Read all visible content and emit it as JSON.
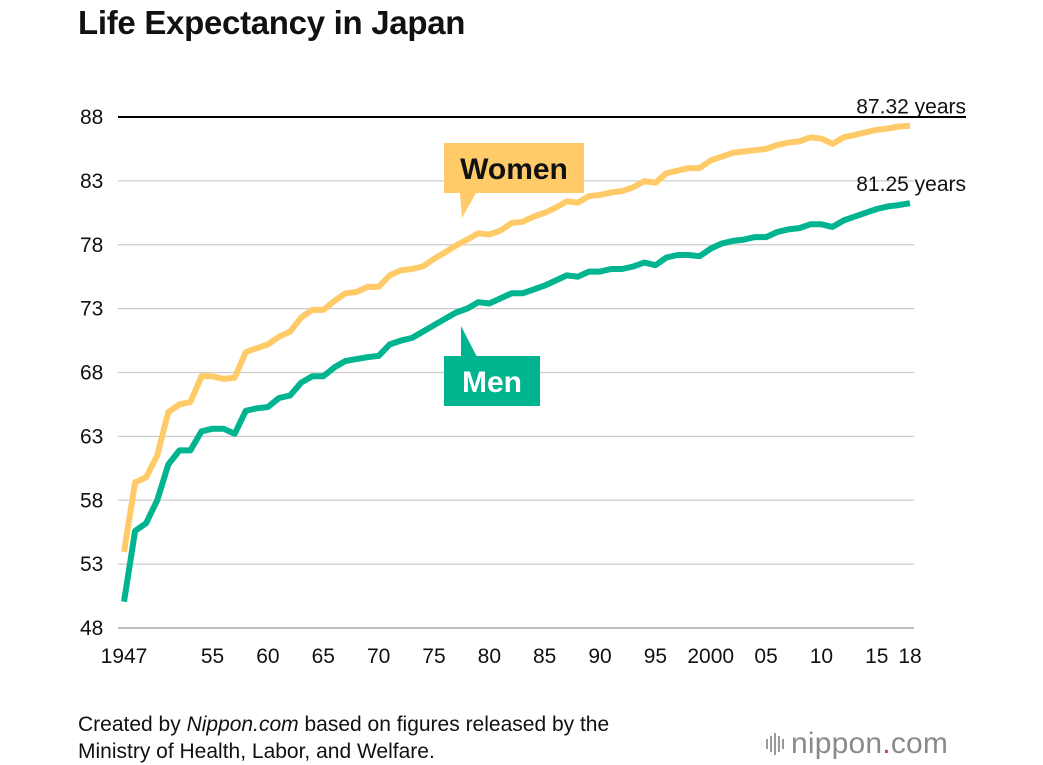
{
  "title": "Life Expectancy in Japan",
  "colors": {
    "women": "#FFCB69",
    "men": "#00B48F",
    "grid": "#cccccc",
    "topline": "#000000"
  },
  "footer": {
    "line1_pre": "Created by ",
    "line1_source": "Nippon.com",
    "line1_post": " based on figures released by the",
    "line2": "Ministry of Health, Labor, and Welfare."
  },
  "logo": {
    "name": "nippon",
    "dot": ".",
    "suffix": "com"
  },
  "chart_data": {
    "type": "line",
    "title": "Life Expectancy in Japan",
    "xlabel": "",
    "ylabel": "",
    "xlim": [
      1947,
      2018
    ],
    "ylim": [
      48,
      88
    ],
    "yticks": [
      48,
      53,
      58,
      63,
      68,
      73,
      78,
      83,
      88
    ],
    "ytick_labels": [
      "48",
      "53",
      "58",
      "63",
      "68",
      "73",
      "78",
      "83",
      "88"
    ],
    "xticks": [
      1947,
      1955,
      1960,
      1965,
      1970,
      1975,
      1980,
      1985,
      1990,
      1995,
      2000,
      2005,
      2010,
      2015,
      2018
    ],
    "xtick_labels": [
      "1947",
      "55",
      "60",
      "65",
      "70",
      "75",
      "80",
      "85",
      "90",
      "95",
      "2000",
      "05",
      "10",
      "15",
      "18"
    ],
    "grid": true,
    "series": [
      {
        "name": "Women",
        "end_label": "87.32 years",
        "x": [
          1947,
          1948,
          1949,
          1950,
          1951,
          1952,
          1953,
          1954,
          1955,
          1956,
          1957,
          1958,
          1959,
          1960,
          1961,
          1962,
          1963,
          1964,
          1965,
          1966,
          1967,
          1968,
          1969,
          1970,
          1971,
          1972,
          1973,
          1974,
          1975,
          1976,
          1977,
          1978,
          1979,
          1980,
          1981,
          1982,
          1983,
          1984,
          1985,
          1986,
          1987,
          1988,
          1989,
          1990,
          1991,
          1992,
          1993,
          1994,
          1995,
          1996,
          1997,
          1998,
          1999,
          2000,
          2001,
          2002,
          2003,
          2004,
          2005,
          2006,
          2007,
          2008,
          2009,
          2010,
          2011,
          2012,
          2013,
          2014,
          2015,
          2016,
          2017,
          2018
        ],
        "values": [
          53.96,
          59.4,
          59.8,
          61.5,
          64.9,
          65.5,
          65.7,
          67.7,
          67.7,
          67.5,
          67.6,
          69.6,
          69.9,
          70.2,
          70.8,
          71.2,
          72.3,
          72.9,
          72.9,
          73.6,
          74.2,
          74.3,
          74.7,
          74.7,
          75.6,
          76.0,
          76.1,
          76.3,
          76.9,
          77.4,
          77.95,
          78.4,
          78.9,
          78.8,
          79.1,
          79.7,
          79.8,
          80.2,
          80.5,
          80.9,
          81.4,
          81.3,
          81.8,
          81.9,
          82.1,
          82.2,
          82.5,
          82.98,
          82.85,
          83.6,
          83.8,
          84.0,
          84.0,
          84.6,
          84.9,
          85.2,
          85.3,
          85.4,
          85.5,
          85.8,
          86.0,
          86.1,
          86.4,
          86.3,
          85.9,
          86.4,
          86.6,
          86.8,
          87.0,
          87.1,
          87.26,
          87.32
        ]
      },
      {
        "name": "Men",
        "end_label": "81.25 years",
        "x": [
          1947,
          1948,
          1949,
          1950,
          1951,
          1952,
          1953,
          1954,
          1955,
          1956,
          1957,
          1958,
          1959,
          1960,
          1961,
          1962,
          1963,
          1964,
          1965,
          1966,
          1967,
          1968,
          1969,
          1970,
          1971,
          1972,
          1973,
          1974,
          1975,
          1976,
          1977,
          1978,
          1979,
          1980,
          1981,
          1982,
          1983,
          1984,
          1985,
          1986,
          1987,
          1988,
          1989,
          1990,
          1991,
          1992,
          1993,
          1994,
          1995,
          1996,
          1997,
          1998,
          1999,
          2000,
          2001,
          2002,
          2003,
          2004,
          2005,
          2006,
          2007,
          2008,
          2009,
          2010,
          2011,
          2012,
          2013,
          2014,
          2015,
          2016,
          2017,
          2018
        ],
        "values": [
          50.06,
          55.6,
          56.2,
          58.0,
          60.8,
          61.9,
          61.9,
          63.4,
          63.6,
          63.6,
          63.2,
          65.0,
          65.2,
          65.3,
          66.0,
          66.2,
          67.2,
          67.7,
          67.7,
          68.4,
          68.9,
          69.05,
          69.2,
          69.3,
          70.2,
          70.5,
          70.7,
          71.2,
          71.7,
          72.2,
          72.7,
          73.0,
          73.5,
          73.4,
          73.8,
          74.2,
          74.2,
          74.5,
          74.8,
          75.2,
          75.6,
          75.5,
          75.9,
          75.9,
          76.1,
          76.1,
          76.3,
          76.6,
          76.4,
          77.0,
          77.2,
          77.2,
          77.1,
          77.7,
          78.1,
          78.3,
          78.4,
          78.6,
          78.6,
          79.0,
          79.2,
          79.3,
          79.6,
          79.6,
          79.4,
          79.9,
          80.2,
          80.5,
          80.8,
          81.0,
          81.1,
          81.25
        ]
      }
    ]
  }
}
